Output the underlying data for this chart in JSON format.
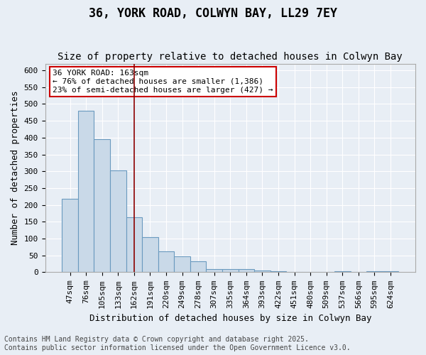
{
  "title": "36, YORK ROAD, COLWYN BAY, LL29 7EY",
  "subtitle": "Size of property relative to detached houses in Colwyn Bay",
  "xlabel": "Distribution of detached houses by size in Colwyn Bay",
  "ylabel": "Number of detached properties",
  "categories": [
    "47sqm",
    "76sqm",
    "105sqm",
    "133sqm",
    "162sqm",
    "191sqm",
    "220sqm",
    "249sqm",
    "278sqm",
    "307sqm",
    "335sqm",
    "364sqm",
    "393sqm",
    "422sqm",
    "451sqm",
    "480sqm",
    "509sqm",
    "537sqm",
    "566sqm",
    "595sqm",
    "624sqm"
  ],
  "values": [
    218,
    480,
    395,
    303,
    163,
    105,
    63,
    47,
    32,
    9,
    10,
    9,
    5,
    2,
    1,
    1,
    0,
    2,
    0,
    3,
    2
  ],
  "bar_color": "#c9d9e8",
  "bar_edge_color": "#6a9abf",
  "vline_x": 4,
  "vline_color": "#8b0000",
  "annotation_text": "36 YORK ROAD: 163sqm\n← 76% of detached houses are smaller (1,386)\n23% of semi-detached houses are larger (427) →",
  "annotation_box_color": "#ffffff",
  "annotation_box_edge": "#cc0000",
  "background_color": "#e8eef5",
  "plot_bg_color": "#e8eef5",
  "ylim": [
    0,
    620
  ],
  "yticks": [
    0,
    50,
    100,
    150,
    200,
    250,
    300,
    350,
    400,
    450,
    500,
    550,
    600
  ],
  "footer": "Contains HM Land Registry data © Crown copyright and database right 2025.\nContains public sector information licensed under the Open Government Licence v3.0.",
  "title_fontsize": 12,
  "subtitle_fontsize": 10,
  "axis_label_fontsize": 9,
  "tick_fontsize": 8,
  "annotation_fontsize": 8,
  "footer_fontsize": 7
}
